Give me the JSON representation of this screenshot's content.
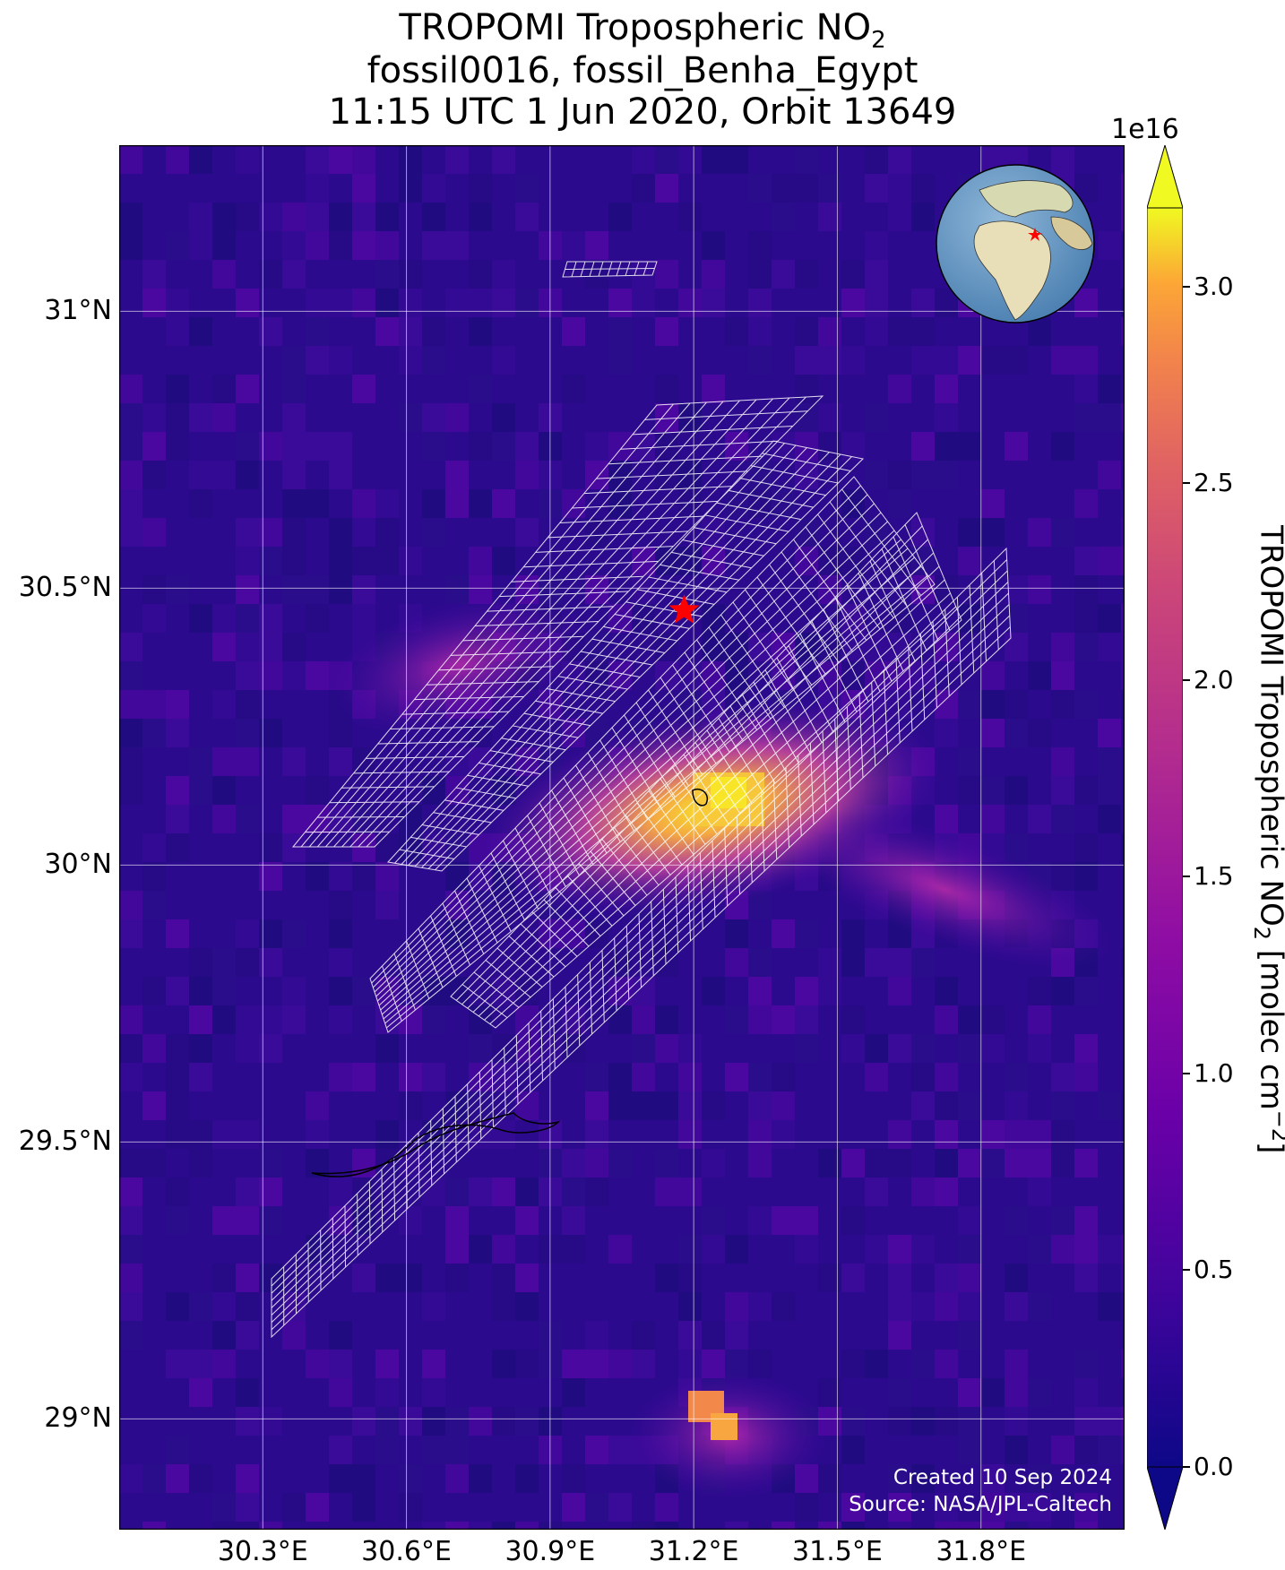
{
  "title": {
    "line1_prefix": "TROPOMI Tropospheric NO",
    "line1_sub": "2",
    "line2": "fossil0016, fossil_Benha_Egypt",
    "line3": "11:15 UTC 1 Jun 2020, Orbit 13649"
  },
  "map": {
    "lon_range": [
      30.0,
      32.1
    ],
    "lat_range": [
      28.8,
      31.3
    ],
    "lon_ticks": [
      "30.3°E",
      "30.6°E",
      "30.9°E",
      "31.2°E",
      "31.5°E",
      "31.8°E"
    ],
    "lat_ticks": [
      "31°N",
      "30.5°N",
      "30°N",
      "29.5°N",
      "29°N"
    ],
    "site_marker": {
      "name": "fossil_Benha_Egypt",
      "lon": 31.18,
      "lat": 30.46,
      "color": "#ff0000"
    },
    "gridlines": true,
    "inset_globe": "top-right",
    "credit_line1": "Created 10 Sep 2024",
    "credit_line2": "Source: NASA/JPL-Caltech"
  },
  "colorbar": {
    "colormap": "plasma",
    "multiplier": "1e16",
    "min": 0.0,
    "max": 3.2,
    "ticks": [
      "0.0",
      "0.5",
      "1.0",
      "1.5",
      "2.0",
      "2.5",
      "3.0"
    ],
    "label_prefix": "TROPOMI Tropospheric NO",
    "label_sub": "2",
    "label_mid": " [molec cm",
    "label_sup": "−2",
    "label_suffix": "]",
    "extend": "both"
  },
  "colors": {
    "background_low": "#2a0a8c",
    "plume_high": "#f0e228",
    "grid": "#ffffff",
    "star": "#ff0000"
  }
}
